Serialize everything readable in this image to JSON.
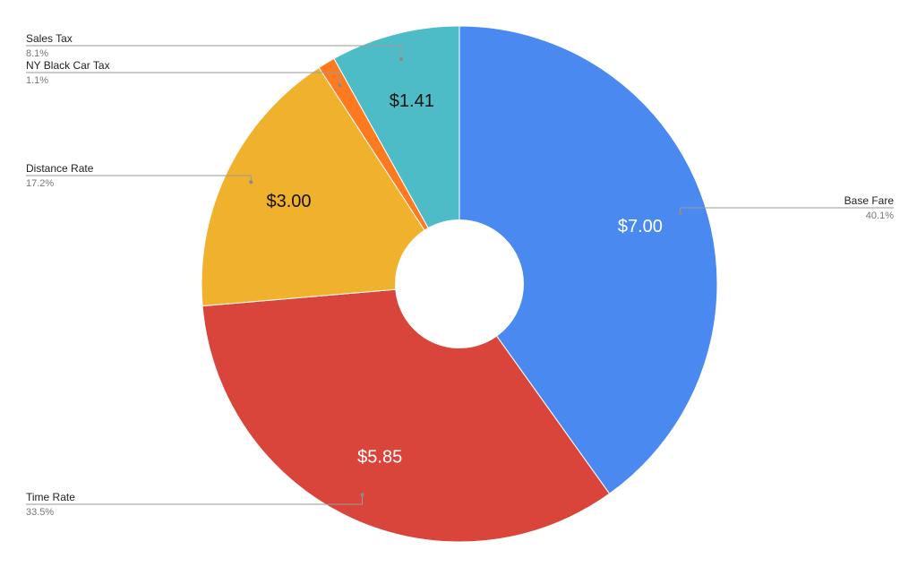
{
  "chart_data": {
    "type": "pie",
    "donut": true,
    "start_angle_deg": 0,
    "direction": "clockwise",
    "slices": [
      {
        "label": "Base Fare",
        "value": 7.0,
        "value_label": "$7.00",
        "percent_label": "40.1%",
        "color": "#4a89ef",
        "value_text_color": "#ffffff"
      },
      {
        "label": "Time Rate",
        "value": 5.85,
        "value_label": "$5.85",
        "percent_label": "33.5%",
        "color": "#d9453b",
        "value_text_color": "#ffffff"
      },
      {
        "label": "Distance Rate",
        "value": 3.0,
        "value_label": "$3.00",
        "percent_label": "17.2%",
        "color": "#f0b22d",
        "value_text_color": "#111111"
      },
      {
        "label": "NY Black Car Tax",
        "value": 0.19,
        "value_label": "",
        "percent_label": "1.1%",
        "color": "#fd7a20",
        "value_text_color": "#111111"
      },
      {
        "label": "Sales Tax",
        "value": 1.41,
        "value_label": "$1.41",
        "percent_label": "8.1%",
        "color": "#4dbcc6",
        "value_text_color": "#111111"
      }
    ],
    "legend": "callouts"
  }
}
